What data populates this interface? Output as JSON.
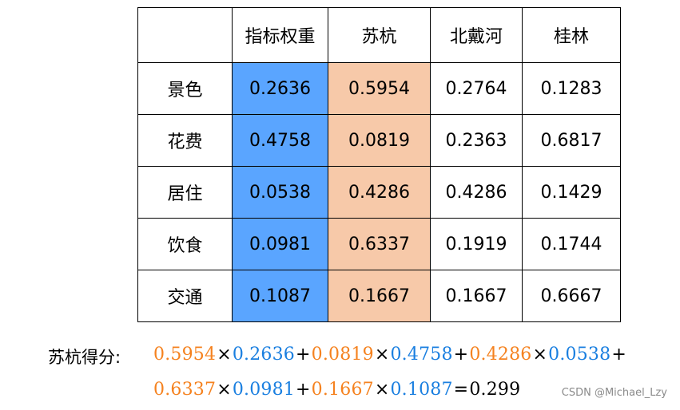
{
  "table": {
    "headers": [
      "",
      "指标权重",
      "苏杭",
      "北戴河",
      "桂林"
    ],
    "rows": [
      {
        "label": "景色",
        "cells": [
          "0.2636",
          "0.5954",
          "0.2764",
          "0.1283"
        ]
      },
      {
        "label": "花费",
        "cells": [
          "0.4758",
          "0.0819",
          "0.2363",
          "0.6817"
        ]
      },
      {
        "label": "居住",
        "cells": [
          "0.0538",
          "0.4286",
          "0.4286",
          "0.1429"
        ]
      },
      {
        "label": "饮食",
        "cells": [
          "0.0981",
          "0.6337",
          "0.1919",
          "0.1744"
        ]
      },
      {
        "label": "交通",
        "cells": [
          "0.1087",
          "0.1667",
          "0.1667",
          "0.6667"
        ]
      }
    ],
    "colors": {
      "weight_column": "#5aa5ff",
      "suhang_column": "#f7c9a9"
    }
  },
  "formula": {
    "label": "苏杭得分:",
    "line1": [
      {
        "t": "0.5954",
        "c": "orange"
      },
      {
        "t": "×",
        "c": "op"
      },
      {
        "t": "0.2636",
        "c": "blue"
      },
      {
        "t": "+",
        "c": "op"
      },
      {
        "t": "0.0819",
        "c": "orange"
      },
      {
        "t": "×",
        "c": "op"
      },
      {
        "t": "0.4758",
        "c": "blue"
      },
      {
        "t": "+",
        "c": "op"
      },
      {
        "t": "0.4286",
        "c": "orange"
      },
      {
        "t": "×",
        "c": "op"
      },
      {
        "t": "0.0538",
        "c": "blue"
      },
      {
        "t": "+",
        "c": "op"
      }
    ],
    "line2": [
      {
        "t": "0.6337",
        "c": "orange"
      },
      {
        "t": "×",
        "c": "op"
      },
      {
        "t": "0.0981",
        "c": "blue"
      },
      {
        "t": "+",
        "c": "op"
      },
      {
        "t": "0.1667",
        "c": "orange"
      },
      {
        "t": "×",
        "c": "op"
      },
      {
        "t": "0.1087",
        "c": "blue"
      },
      {
        "t": "=",
        "c": "op"
      },
      {
        "t": "0.299",
        "c": "black"
      }
    ],
    "colors": {
      "orange": "#f5821f",
      "blue": "#1a7fe0"
    }
  },
  "watermark": "CSDN @Michael_Lzy"
}
